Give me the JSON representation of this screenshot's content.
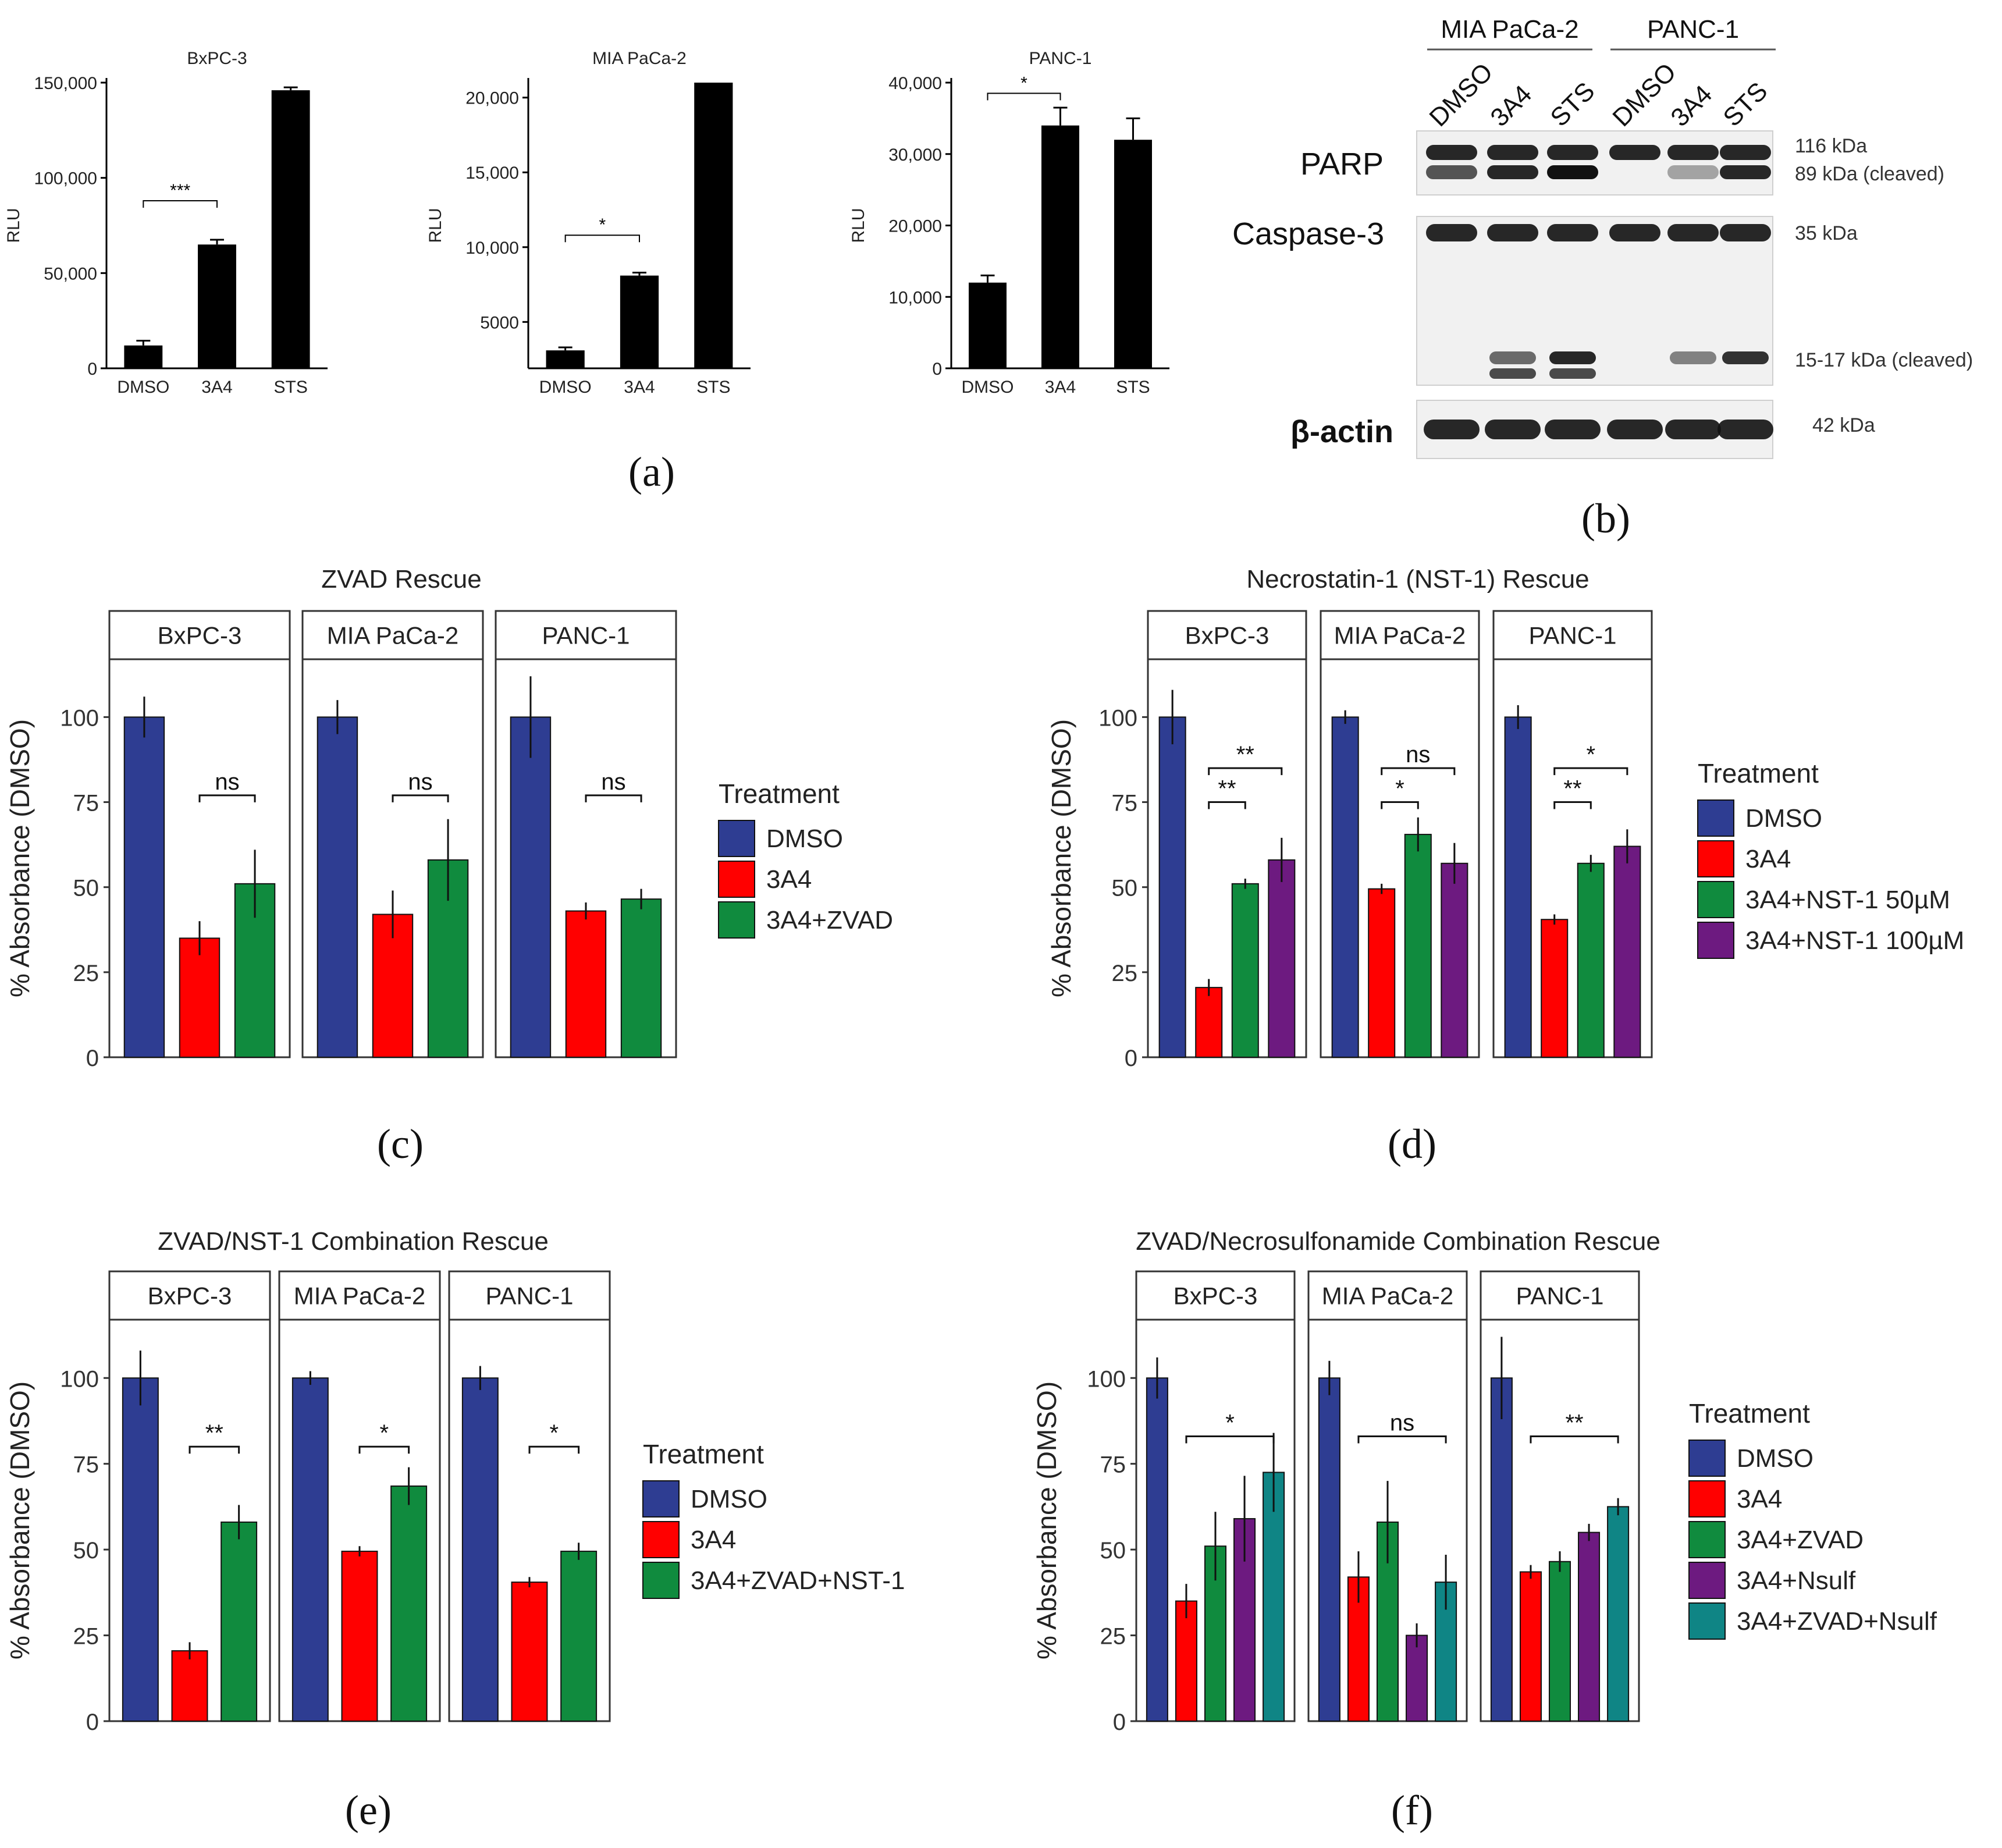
{
  "colors": {
    "DMSO": "#2E3D92",
    "3A4": "#FF0000",
    "3A4+ZVAD": "#108B3E",
    "3A4+NST-1 50µM": "#108B3E",
    "3A4+NST-1 100µM": "#6D1A80",
    "3A4+ZVAD+NST-1": "#108B3E",
    "3A4+Nsulf": "#6D1A80",
    "3A4+ZVAD+Nsulf": "#0F8585",
    "a_bar": "#000000"
  },
  "chart_data": [
    {
      "id": "a-bxpc3",
      "panel": "(a)",
      "type": "bar",
      "title": "BxPC-3",
      "xlabel": "",
      "ylabel": "RLU",
      "ylim": [
        0,
        150000
      ],
      "yticks": [
        0,
        50000,
        100000,
        150000
      ],
      "ytick_labels": [
        "0",
        "50,000",
        "100,000",
        "150,000"
      ],
      "categories": [
        "DMSO",
        "3A4",
        "STS"
      ],
      "values": [
        12000,
        65000,
        146000
      ],
      "errors": [
        2500,
        2500,
        1500
      ],
      "sig": [
        {
          "from": 0,
          "to": 1,
          "label": "***",
          "y": 88000
        }
      ]
    },
    {
      "id": "a-mia",
      "panel": "(a)",
      "type": "bar",
      "title": "MIA PaCa-2",
      "xlabel": "",
      "ylabel": "RLU",
      "ylim": [
        1900,
        21000
      ],
      "yticks": [
        5000,
        10000,
        15000,
        20000
      ],
      "ytick_labels": [
        "5000",
        "10,000",
        "15,000",
        "20,000"
      ],
      "categories": [
        "DMSO",
        "3A4",
        "STS"
      ],
      "values": [
        3100,
        8100,
        21000
      ],
      "errors": [
        200,
        200,
        0
      ],
      "sig": [
        {
          "from": 0,
          "to": 1,
          "label": "*",
          "y": 10800
        }
      ]
    },
    {
      "id": "a-panc1",
      "panel": "(a)",
      "type": "bar",
      "title": "PANC-1",
      "xlabel": "",
      "ylabel": "RLU",
      "ylim": [
        0,
        40000
      ],
      "yticks": [
        0,
        10000,
        20000,
        30000,
        40000
      ],
      "ytick_labels": [
        "0",
        "10,000",
        "20,000",
        "30,000",
        "40,000"
      ],
      "categories": [
        "DMSO",
        "3A4",
        "STS"
      ],
      "values": [
        12000,
        34000,
        32000
      ],
      "errors": [
        1000,
        2500,
        3000
      ],
      "sig": [
        {
          "from": 0,
          "to": 1,
          "label": "*",
          "y": 38500
        }
      ]
    },
    {
      "id": "c",
      "panel": "(c)",
      "type": "bar",
      "title": "ZVAD Rescue",
      "ylabel": "% Absorbance (DMSO)",
      "ylim": [
        0,
        117
      ],
      "yticks": [
        0,
        25,
        50,
        75,
        100
      ],
      "facets": [
        "BxPC-3",
        "MIA PaCa-2",
        "PANC-1"
      ],
      "legend_title": "Treatment",
      "series": [
        {
          "name": "DMSO",
          "values": [
            100,
            100,
            100
          ],
          "errors": [
            6,
            5,
            12
          ]
        },
        {
          "name": "3A4",
          "values": [
            35,
            42,
            43
          ],
          "errors": [
            5,
            7,
            2.5
          ]
        },
        {
          "name": "3A4+ZVAD",
          "values": [
            51,
            58,
            46.5
          ],
          "errors": [
            10,
            12,
            3
          ]
        }
      ],
      "sig": [
        {
          "facet": 0,
          "from": 1,
          "to": 2,
          "label": "ns",
          "y": 77
        },
        {
          "facet": 1,
          "from": 1,
          "to": 2,
          "label": "ns",
          "y": 77
        },
        {
          "facet": 2,
          "from": 1,
          "to": 2,
          "label": "ns",
          "y": 77
        }
      ]
    },
    {
      "id": "d",
      "panel": "(d)",
      "type": "bar",
      "title": "Necrostatin-1 (NST-1) Rescue",
      "ylabel": "% Absorbance (DMSO)",
      "ylim": [
        0,
        117
      ],
      "yticks": [
        0,
        25,
        50,
        75,
        100
      ],
      "facets": [
        "BxPC-3",
        "MIA PaCa-2",
        "PANC-1"
      ],
      "legend_title": "Treatment",
      "series": [
        {
          "name": "DMSO",
          "values": [
            100,
            100,
            100
          ],
          "errors": [
            8,
            2,
            3.5
          ]
        },
        {
          "name": "3A4",
          "values": [
            20.5,
            49.5,
            40.5
          ],
          "errors": [
            2.5,
            1.5,
            1.5
          ]
        },
        {
          "name": "3A4+NST-1 50µM",
          "values": [
            51,
            65.5,
            57
          ],
          "errors": [
            1.5,
            5,
            2.5
          ]
        },
        {
          "name": "3A4+NST-1 100µM",
          "values": [
            58,
            57,
            62
          ],
          "errors": [
            6.5,
            6,
            5
          ]
        }
      ],
      "sig": [
        {
          "facet": 0,
          "from": 1,
          "to": 2,
          "label": "**",
          "y": 75
        },
        {
          "facet": 0,
          "from": 1,
          "to": 3,
          "label": "**",
          "y": 85
        },
        {
          "facet": 1,
          "from": 1,
          "to": 2,
          "label": "*",
          "y": 75
        },
        {
          "facet": 1,
          "from": 1,
          "to": 3,
          "label": "ns",
          "y": 85
        },
        {
          "facet": 2,
          "from": 1,
          "to": 2,
          "label": "**",
          "y": 75
        },
        {
          "facet": 2,
          "from": 1,
          "to": 3,
          "label": "*",
          "y": 85
        }
      ]
    },
    {
      "id": "e",
      "panel": "(e)",
      "type": "bar",
      "title": "ZVAD/NST-1 Combination Rescue",
      "ylabel": "% Absorbance (DMSO)",
      "ylim": [
        0,
        117
      ],
      "yticks": [
        0,
        25,
        50,
        75,
        100
      ],
      "facets": [
        "BxPC-3",
        "MIA PaCa-2",
        "PANC-1"
      ],
      "legend_title": "Treatment",
      "series": [
        {
          "name": "DMSO",
          "values": [
            100,
            100,
            100
          ],
          "errors": [
            8,
            2,
            3.5
          ]
        },
        {
          "name": "3A4",
          "values": [
            20.5,
            49.5,
            40.5
          ],
          "errors": [
            2.5,
            1.5,
            1.5
          ]
        },
        {
          "name": "3A4+ZVAD+NST-1",
          "values": [
            58,
            68.5,
            49.5
          ],
          "errors": [
            5,
            5.5,
            2.5
          ]
        }
      ],
      "sig": [
        {
          "facet": 0,
          "from": 1,
          "to": 2,
          "label": "**",
          "y": 80
        },
        {
          "facet": 1,
          "from": 1,
          "to": 2,
          "label": "*",
          "y": 80
        },
        {
          "facet": 2,
          "from": 1,
          "to": 2,
          "label": "*",
          "y": 80
        }
      ]
    },
    {
      "id": "f",
      "panel": "(f)",
      "type": "bar",
      "title": "ZVAD/Necrosulfonamide Combination Rescue",
      "ylabel": "% Absorbance (DMSO)",
      "ylim": [
        0,
        117
      ],
      "yticks": [
        0,
        25,
        50,
        75,
        100
      ],
      "facets": [
        "BxPC-3",
        "MIA PaCa-2",
        "PANC-1"
      ],
      "legend_title": "Treatment",
      "series": [
        {
          "name": "DMSO",
          "values": [
            100,
            100,
            100
          ],
          "errors": [
            6,
            5,
            12
          ]
        },
        {
          "name": "3A4",
          "values": [
            35,
            42,
            43.5
          ],
          "errors": [
            5,
            7.5,
            2
          ]
        },
        {
          "name": "3A4+ZVAD",
          "values": [
            51,
            58,
            46.5
          ],
          "errors": [
            10,
            12,
            3
          ]
        },
        {
          "name": "3A4+Nsulf",
          "values": [
            59,
            25,
            55
          ],
          "errors": [
            12.5,
            3.5,
            2.5
          ]
        },
        {
          "name": "3A4+ZVAD+Nsulf",
          "values": [
            72.5,
            40.5,
            62.5
          ],
          "errors": [
            11.5,
            8,
            2.5
          ]
        }
      ],
      "sig": [
        {
          "facet": 0,
          "from": 1,
          "to": 4,
          "label": "*",
          "y": 83
        },
        {
          "facet": 1,
          "from": 1,
          "to": 4,
          "label": "ns",
          "y": 83
        },
        {
          "facet": 2,
          "from": 1,
          "to": 4,
          "label": "**",
          "y": 83
        }
      ]
    }
  ],
  "western_blot": {
    "panel": "(b)",
    "cell_lines": [
      "MIA PaCa-2",
      "PANC-1"
    ],
    "lanes": [
      "DMSO",
      "3A4",
      "STS",
      "DMSO",
      "3A4",
      "STS"
    ],
    "rows": [
      {
        "label": "PARP",
        "kda": [
          "116 kDa",
          "89 kDa (cleaved)"
        ]
      },
      {
        "label": "Caspase-3",
        "kda": [
          "35 kDa",
          "15-17 kDa (cleaved)"
        ]
      },
      {
        "label": "β-actin",
        "kda": [
          "42 kDa"
        ]
      }
    ]
  },
  "panel_labels": [
    "(a)",
    "(b)",
    "(c)",
    "(d)",
    "(e)",
    "(f)"
  ]
}
